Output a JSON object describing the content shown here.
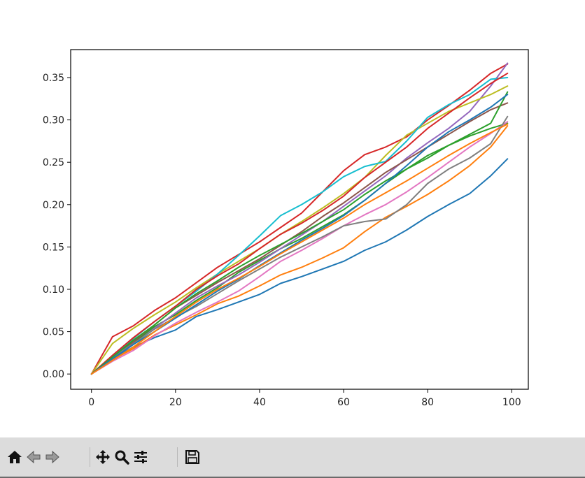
{
  "chart_data": {
    "type": "line",
    "title": "",
    "xlabel": "",
    "ylabel": "",
    "xlim": [
      -4.95,
      103.95
    ],
    "ylim": [
      -0.018,
      0.383
    ],
    "xticks": [
      0,
      20,
      40,
      60,
      80,
      100
    ],
    "xtick_labels": [
      "0",
      "20",
      "40",
      "60",
      "80",
      "100"
    ],
    "yticks": [
      0.0,
      0.05,
      0.1,
      0.15,
      0.2,
      0.25,
      0.3,
      0.35
    ],
    "ytick_labels": [
      "0.00",
      "0.05",
      "0.10",
      "0.15",
      "0.20",
      "0.25",
      "0.30",
      "0.35"
    ],
    "grid": false,
    "legend": "none",
    "x_points": [
      0,
      5,
      10,
      15,
      20,
      25,
      30,
      35,
      40,
      45,
      50,
      55,
      60,
      65,
      70,
      75,
      80,
      85,
      90,
      95,
      99
    ],
    "series": [
      {
        "color": "#1f77b4",
        "values": [
          0.0,
          0.018,
          0.032,
          0.043,
          0.052,
          0.068,
          0.076,
          0.085,
          0.094,
          0.107,
          0.115,
          0.124,
          0.133,
          0.146,
          0.156,
          0.17,
          0.186,
          0.2,
          0.213,
          0.234,
          0.254
        ]
      },
      {
        "color": "#ff7f0e",
        "values": [
          0.0,
          0.017,
          0.03,
          0.046,
          0.058,
          0.07,
          0.083,
          0.092,
          0.104,
          0.117,
          0.126,
          0.137,
          0.149,
          0.168,
          0.185,
          0.198,
          0.212,
          0.228,
          0.246,
          0.268,
          0.293
        ]
      },
      {
        "color": "#2ca02c",
        "values": [
          0.0,
          0.02,
          0.037,
          0.056,
          0.07,
          0.087,
          0.102,
          0.12,
          0.134,
          0.148,
          0.16,
          0.174,
          0.188,
          0.205,
          0.225,
          0.242,
          0.258,
          0.27,
          0.281,
          0.29,
          0.296
        ]
      },
      {
        "color": "#d62728",
        "values": [
          0.0,
          0.044,
          0.057,
          0.075,
          0.09,
          0.108,
          0.126,
          0.141,
          0.156,
          0.173,
          0.19,
          0.215,
          0.24,
          0.259,
          0.268,
          0.28,
          0.3,
          0.317,
          0.335,
          0.355,
          0.366
        ]
      },
      {
        "color": "#9467bd",
        "values": [
          0.0,
          0.019,
          0.035,
          0.054,
          0.072,
          0.09,
          0.104,
          0.117,
          0.132,
          0.148,
          0.164,
          0.18,
          0.198,
          0.216,
          0.234,
          0.255,
          0.273,
          0.29,
          0.31,
          0.34,
          0.367
        ]
      },
      {
        "color": "#8c564b",
        "values": [
          0.0,
          0.021,
          0.038,
          0.058,
          0.078,
          0.093,
          0.108,
          0.122,
          0.136,
          0.152,
          0.168,
          0.186,
          0.202,
          0.22,
          0.238,
          0.253,
          0.268,
          0.283,
          0.298,
          0.312,
          0.32
        ]
      },
      {
        "color": "#e377c2",
        "values": [
          0.0,
          0.015,
          0.028,
          0.045,
          0.06,
          0.073,
          0.085,
          0.098,
          0.115,
          0.133,
          0.146,
          0.16,
          0.175,
          0.188,
          0.2,
          0.215,
          0.232,
          0.25,
          0.268,
          0.284,
          0.298
        ]
      },
      {
        "color": "#7f7f7f",
        "values": [
          0.0,
          0.02,
          0.036,
          0.053,
          0.067,
          0.08,
          0.095,
          0.11,
          0.124,
          0.138,
          0.15,
          0.162,
          0.175,
          0.18,
          0.183,
          0.2,
          0.225,
          0.242,
          0.255,
          0.272,
          0.304
        ]
      },
      {
        "color": "#bcbd22",
        "values": [
          0.0,
          0.036,
          0.054,
          0.07,
          0.085,
          0.102,
          0.118,
          0.133,
          0.148,
          0.165,
          0.18,
          0.196,
          0.213,
          0.232,
          0.258,
          0.282,
          0.296,
          0.31,
          0.32,
          0.33,
          0.34
        ]
      },
      {
        "color": "#17becf",
        "values": [
          0.0,
          0.02,
          0.042,
          0.062,
          0.08,
          0.098,
          0.118,
          0.14,
          0.163,
          0.187,
          0.2,
          0.215,
          0.233,
          0.245,
          0.251,
          0.275,
          0.303,
          0.318,
          0.33,
          0.348,
          0.35
        ]
      },
      {
        "color": "#d62728",
        "values": [
          0.0,
          0.022,
          0.043,
          0.062,
          0.08,
          0.1,
          0.116,
          0.13,
          0.148,
          0.165,
          0.178,
          0.193,
          0.21,
          0.232,
          0.25,
          0.268,
          0.29,
          0.308,
          0.326,
          0.343,
          0.355
        ]
      },
      {
        "color": "#2ca02c",
        "values": [
          0.0,
          0.02,
          0.04,
          0.058,
          0.078,
          0.095,
          0.11,
          0.126,
          0.14,
          0.153,
          0.166,
          0.18,
          0.194,
          0.212,
          0.228,
          0.242,
          0.255,
          0.27,
          0.283,
          0.296,
          0.333
        ]
      },
      {
        "color": "#1f77b4",
        "values": [
          0.0,
          0.018,
          0.035,
          0.05,
          0.066,
          0.082,
          0.098,
          0.112,
          0.128,
          0.143,
          0.158,
          0.172,
          0.187,
          0.205,
          0.225,
          0.246,
          0.268,
          0.286,
          0.3,
          0.315,
          0.33
        ]
      },
      {
        "color": "#ff7f0e",
        "values": [
          0.0,
          0.016,
          0.032,
          0.05,
          0.068,
          0.085,
          0.1,
          0.113,
          0.127,
          0.142,
          0.156,
          0.17,
          0.184,
          0.2,
          0.214,
          0.228,
          0.243,
          0.258,
          0.272,
          0.285,
          0.295
        ]
      }
    ]
  },
  "toolbar": {
    "buttons": [
      {
        "name": "home-button",
        "icon": "home-icon"
      },
      {
        "name": "back-button",
        "icon": "arrow-left-icon"
      },
      {
        "name": "forward-button",
        "icon": "arrow-right-icon"
      },
      {
        "name": "pan-button",
        "icon": "move-icon"
      },
      {
        "name": "zoom-button",
        "icon": "magnifier-icon"
      },
      {
        "name": "configure-subplots-button",
        "icon": "sliders-icon"
      },
      {
        "name": "save-button",
        "icon": "floppy-disk-icon"
      }
    ]
  }
}
